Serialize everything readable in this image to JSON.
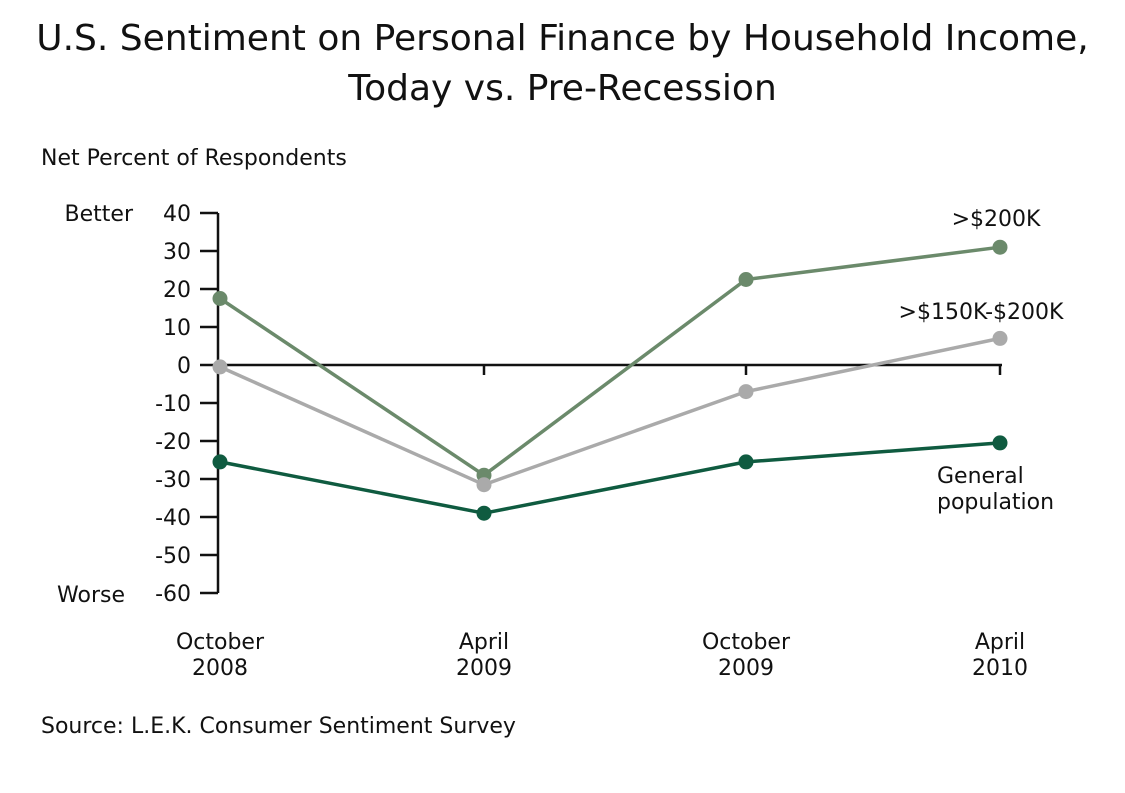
{
  "chart_data": {
    "type": "line",
    "title": "U.S. Sentiment on Personal Finance by Household Income,",
    "subtitle": "Today vs. Pre-Recession",
    "ylabel": "Net Percent of Respondents",
    "y_top_label": "Better",
    "y_bottom_label": "Worse",
    "ylim": [
      -60,
      40
    ],
    "yticks": [
      40,
      30,
      20,
      10,
      0,
      -10,
      -20,
      -30,
      -40,
      -50,
      -60
    ],
    "categories": [
      [
        "October",
        "2008"
      ],
      [
        "April",
        "2009"
      ],
      [
        "October",
        "2009"
      ],
      [
        "April",
        "2010"
      ]
    ],
    "series": [
      {
        "name": ">$200K",
        "values": [
          17.5,
          -29,
          22.5,
          31
        ],
        "color": "#6b8a6b"
      },
      {
        "name": ">$150K-$200K",
        "values": [
          -0.5,
          -31.5,
          -7,
          7
        ],
        "color": "#aaaaaa"
      },
      {
        "name": "General population",
        "label_lines": [
          "General",
          "population"
        ],
        "values": [
          -25.5,
          -39,
          -25.5,
          -20.5
        ],
        "color": "#0f5b40"
      }
    ],
    "grid": false,
    "source": "Source: L.E.K. Consumer Sentiment Survey"
  }
}
